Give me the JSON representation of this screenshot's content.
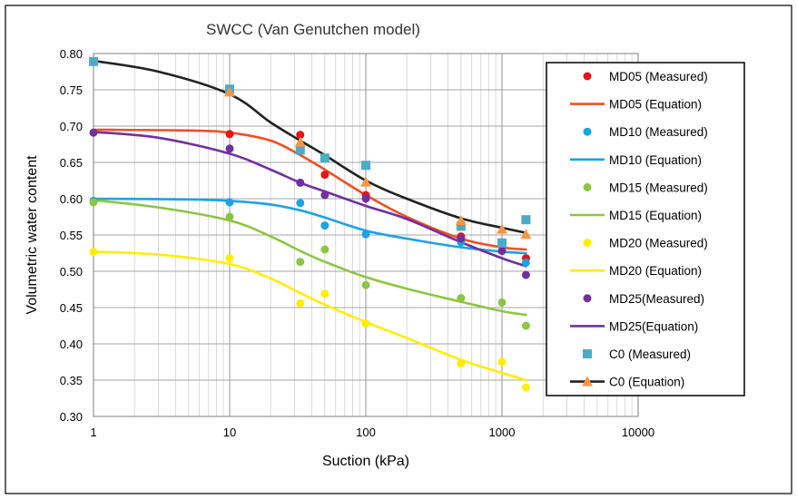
{
  "chart_data": {
    "type": "scatter",
    "title": "SWCC (Van Genutchen model)",
    "xlabel": "Suction (kPa)",
    "ylabel": "Volumetric water content",
    "xscale": "log",
    "xlim": [
      1,
      10000
    ],
    "ylim": [
      0.3,
      0.8
    ],
    "x_ticks": [
      "1",
      "10",
      "100",
      "1000",
      "10000"
    ],
    "y_ticks": [
      "0.30",
      "0.35",
      "0.40",
      "0.45",
      "0.50",
      "0.55",
      "0.60",
      "0.65",
      "0.70",
      "0.75",
      "0.80"
    ],
    "grid": true,
    "legend_position": "right",
    "series": [
      {
        "name": "MD05 (Measured)",
        "kind": "points",
        "marker": "circle",
        "color": "#e3141b",
        "x": [
          10,
          33,
          50,
          100,
          500,
          1000,
          1500
        ],
        "y": [
          0.689,
          0.688,
          0.633,
          0.605,
          0.548,
          0.535,
          0.518
        ]
      },
      {
        "name": "MD05 (Equation)",
        "kind": "line",
        "color": "#f04e23",
        "x": [
          1,
          5,
          10,
          20,
          33,
          50,
          100,
          200,
          500,
          1000,
          1500
        ],
        "y": [
          0.695,
          0.694,
          0.691,
          0.68,
          0.66,
          0.64,
          0.605,
          0.575,
          0.545,
          0.533,
          0.53
        ]
      },
      {
        "name": "MD10 (Measured)",
        "kind": "points",
        "marker": "circle",
        "color": "#1aa3e6",
        "x": [
          1,
          10,
          33,
          50,
          100,
          500,
          1000,
          1500
        ],
        "y": [
          0.597,
          0.595,
          0.594,
          0.563,
          0.551,
          0.54,
          0.535,
          0.512
        ]
      },
      {
        "name": "MD10 (Equation)",
        "kind": "line",
        "color": "#1aa3e6",
        "x": [
          1,
          5,
          10,
          20,
          33,
          50,
          100,
          200,
          500,
          1000,
          1500
        ],
        "y": [
          0.6,
          0.599,
          0.597,
          0.592,
          0.584,
          0.574,
          0.556,
          0.545,
          0.533,
          0.527,
          0.525
        ]
      },
      {
        "name": "MD15 (Measured)",
        "kind": "points",
        "marker": "circle",
        "color": "#8cc641",
        "x": [
          1,
          10,
          33,
          50,
          100,
          500,
          1000,
          1500
        ],
        "y": [
          0.595,
          0.575,
          0.513,
          0.53,
          0.481,
          0.463,
          0.457,
          0.425
        ]
      },
      {
        "name": "MD15 (Equation)",
        "kind": "line",
        "color": "#8cc641",
        "x": [
          1,
          3,
          10,
          20,
          33,
          50,
          100,
          200,
          500,
          1000,
          1500
        ],
        "y": [
          0.598,
          0.588,
          0.57,
          0.548,
          0.528,
          0.513,
          0.492,
          0.476,
          0.458,
          0.445,
          0.44
        ]
      },
      {
        "name": "MD20 (Measured)",
        "kind": "points",
        "marker": "circle",
        "color": "#ffee00",
        "x": [
          1,
          10,
          33,
          50,
          100,
          500,
          1000,
          1500
        ],
        "y": [
          0.527,
          0.518,
          0.456,
          0.469,
          0.428,
          0.373,
          0.375,
          0.34
        ]
      },
      {
        "name": "MD20 (Equation)",
        "kind": "line",
        "color": "#ffee00",
        "x": [
          1,
          3,
          10,
          20,
          33,
          50,
          100,
          200,
          500,
          1000,
          1500
        ],
        "y": [
          0.527,
          0.523,
          0.51,
          0.49,
          0.47,
          0.454,
          0.43,
          0.408,
          0.378,
          0.36,
          0.35
        ]
      },
      {
        "name": "MD25(Measured)",
        "kind": "points",
        "marker": "circle",
        "color": "#7030a0",
        "x": [
          1,
          10,
          33,
          50,
          100,
          500,
          1000,
          1500
        ],
        "y": [
          0.691,
          0.669,
          0.622,
          0.605,
          0.6,
          0.545,
          0.528,
          0.495
        ]
      },
      {
        "name": "MD25(Equation)",
        "kind": "line",
        "color": "#7030a0",
        "x": [
          1,
          3,
          10,
          20,
          33,
          50,
          100,
          200,
          500,
          1000,
          1500
        ],
        "y": [
          0.692,
          0.684,
          0.662,
          0.64,
          0.622,
          0.61,
          0.59,
          0.572,
          0.54,
          0.518,
          0.507
        ]
      },
      {
        "name": "C0 (Measured)",
        "kind": "points",
        "marker": "square",
        "color": "#4bacc6",
        "x": [
          1,
          10,
          33,
          50,
          100,
          500,
          1000,
          1500
        ],
        "y": [
          0.789,
          0.751,
          0.667,
          0.656,
          0.646,
          0.562,
          0.539,
          0.571
        ]
      },
      {
        "name": "C0 (Equation)",
        "kind": "line",
        "color": "#222222",
        "x": [
          1,
          3,
          10,
          20,
          33,
          50,
          100,
          200,
          500,
          1000,
          1500
        ],
        "y": [
          0.79,
          0.775,
          0.744,
          0.705,
          0.68,
          0.66,
          0.625,
          0.6,
          0.573,
          0.56,
          0.553
        ]
      },
      {
        "name": "C0 (Equation)",
        "kind": "points",
        "marker": "triangle",
        "color": "#f79646",
        "legend": false,
        "x": [
          10,
          33,
          100,
          500,
          1000,
          1500
        ],
        "y": [
          0.747,
          0.678,
          0.623,
          0.57,
          0.558,
          0.551
        ]
      }
    ]
  },
  "colors": {
    "plot_border": "#7f7f7f",
    "grid_major": "#a6a6a6",
    "grid_minor": "#d0d0d0",
    "frame": "#000000"
  }
}
